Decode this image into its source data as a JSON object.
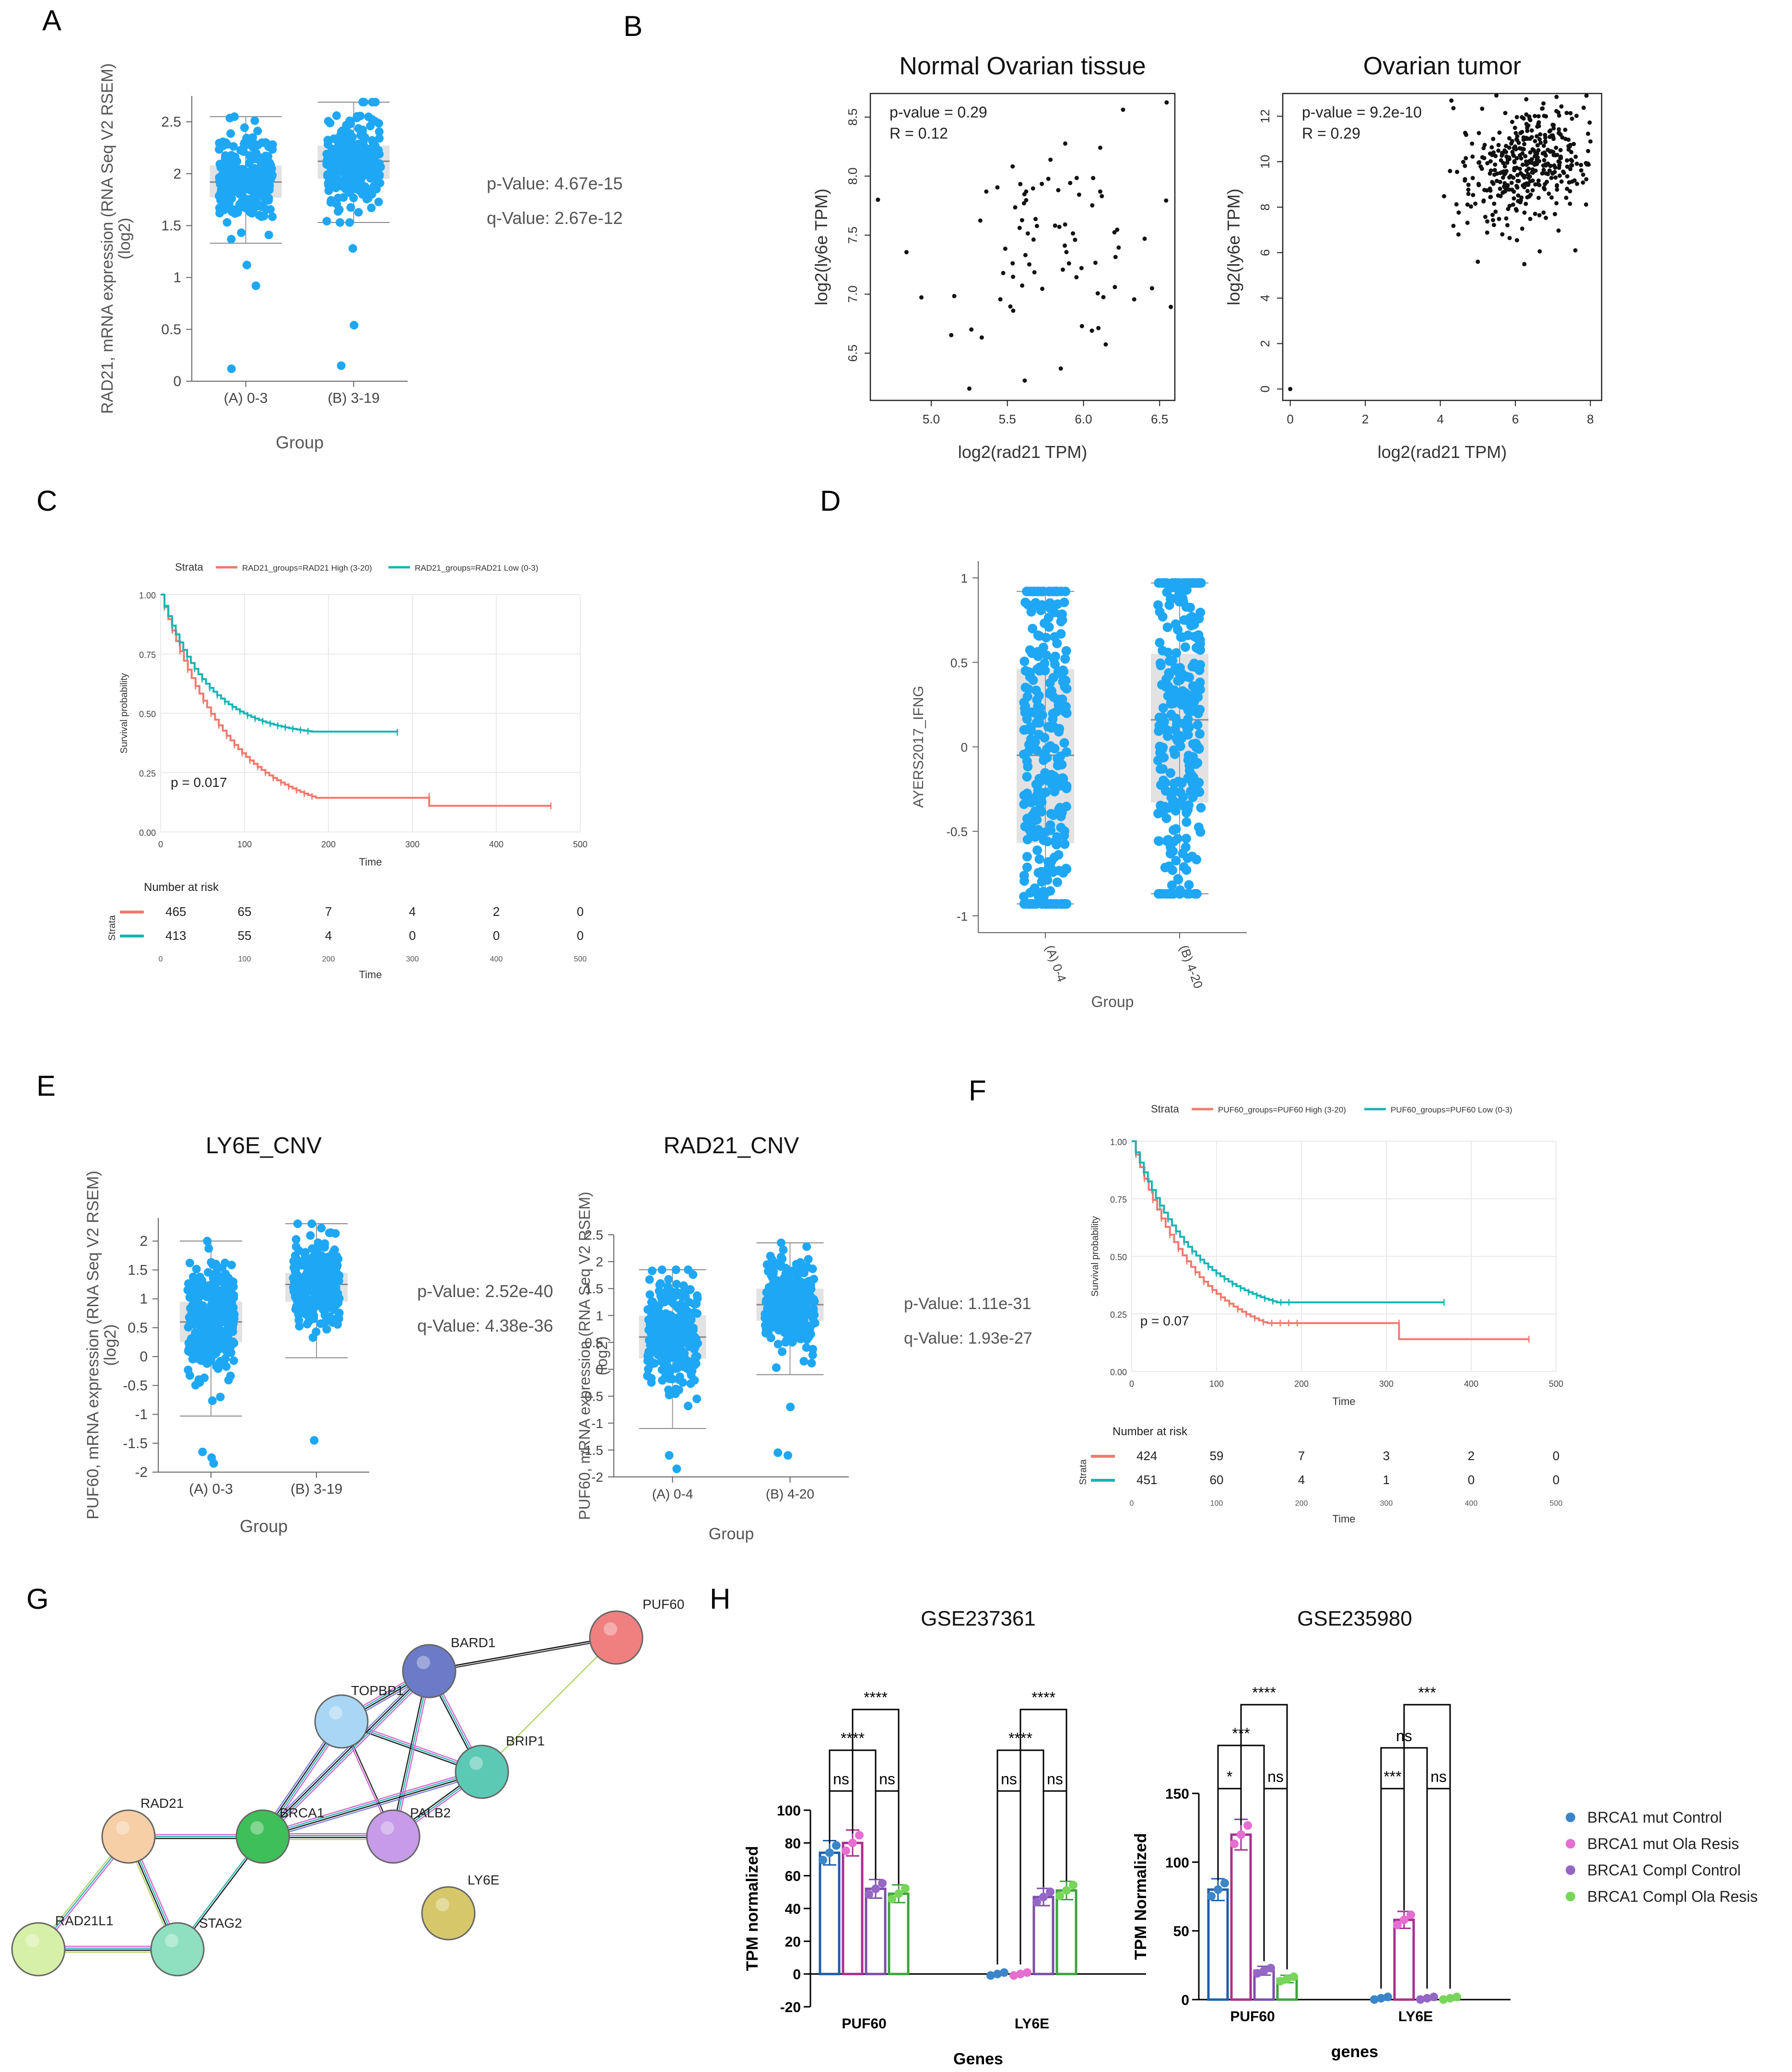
{
  "panel_labels": [
    "A",
    "B",
    "C",
    "D",
    "E",
    "F",
    "G",
    "H"
  ],
  "colors": {
    "blue": "#1ea7f5",
    "salmon": "#f07a6e",
    "teal": "#18b4b4",
    "box": "#d6d6d6",
    "bar1": "#1f5ea8",
    "bar2": "#a8308f",
    "bar3": "#7b4fa8",
    "bar4": "#3fa23f",
    "dot1": "#3a86c8",
    "dot2": "#e66ed0",
    "dot3": "#9467c5",
    "dot4": "#77d65a"
  },
  "chart_data": [
    {
      "id": "A",
      "type": "scatter",
      "title": "",
      "xlabel": "Group",
      "ylabel": "RAD21, mRNA expression (RNA Seq V2 RSEM)",
      "ylabel2": "(log2)",
      "categories": [
        "(A) 0-3",
        "(B) 3-19"
      ],
      "ylim": [
        0,
        2.75
      ],
      "yticks": [
        "0",
        "0.5",
        "1",
        "1.5",
        "2",
        "2.5"
      ],
      "box": [
        {
          "q1": 1.77,
          "med": 1.92,
          "q3": 2.08,
          "wlo": 1.33,
          "whi": 2.55
        },
        {
          "q1": 1.95,
          "med": 2.12,
          "q3": 2.27,
          "wlo": 1.53,
          "whi": 2.69
        }
      ],
      "annotations": [
        "p-Value: 4.67e-15",
        "q-Value: 2.67e-12"
      ]
    },
    {
      "id": "B1",
      "type": "scatter",
      "title": "Normal Ovarian tissue",
      "xlabel": "log2(rad21 TPM)",
      "ylabel": "log2(ly6e TPM)",
      "xticks": [
        "5.0",
        "5.5",
        "6.0",
        "6.5"
      ],
      "yticks": [
        "6.5",
        "7.0",
        "7.5",
        "8.0",
        "8.5"
      ],
      "xlim": [
        4.6,
        6.6
      ],
      "ylim": [
        6.1,
        8.7
      ],
      "annotations": [
        "p-value = 0.29",
        "R = 0.12"
      ]
    },
    {
      "id": "B2",
      "type": "scatter",
      "title": "Ovarian tumor",
      "xlabel": "log2(rad21 TPM)",
      "ylabel": "log2(ly6e TPM)",
      "xticks": [
        "0",
        "2",
        "4",
        "6",
        "8"
      ],
      "yticks": [
        "0",
        "2",
        "4",
        "6",
        "8",
        "10",
        "12"
      ],
      "xlim": [
        -0.2,
        8.3
      ],
      "ylim": [
        -0.5,
        13
      ],
      "annotations": [
        "p-value = 9.2e-10",
        "R = 0.29"
      ]
    },
    {
      "id": "C",
      "type": "line",
      "title": "",
      "xlabel": "Time",
      "ylabel": "Survival probability",
      "legend_title": "Strata",
      "series": [
        {
          "name": "RAD21_groups=RAD21 High (3-20)"
        },
        {
          "name": "RAD21_groups=RAD21 Low (0-3)"
        }
      ],
      "xticks": [
        "0",
        "100",
        "200",
        "300",
        "400",
        "500"
      ],
      "yticks": [
        "0.00",
        "0.25",
        "0.50",
        "0.75",
        "1.00"
      ],
      "pvalue": "p = 0.017",
      "risk_title": "Number at risk",
      "risk_strata_label": "Strata",
      "risk": [
        [
          "465",
          "65",
          "7",
          "4",
          "2",
          "0"
        ],
        [
          "413",
          "55",
          "4",
          "0",
          "0",
          "0"
        ]
      ]
    },
    {
      "id": "D",
      "type": "scatter",
      "title": "",
      "xlabel": "Group",
      "ylabel": "AYERS2017_IFNG",
      "categories": [
        "(A) 0-4",
        "(B) 4-20"
      ],
      "ylim": [
        -1.1,
        1.1
      ],
      "yticks": [
        "-1",
        "-0.5",
        "0",
        "0.5",
        "1"
      ],
      "box": [
        {
          "q1": -0.57,
          "med": -0.05,
          "q3": 0.46,
          "wlo": -0.93,
          "whi": 0.92
        },
        {
          "q1": -0.33,
          "med": 0.16,
          "q3": 0.55,
          "wlo": -0.87,
          "whi": 0.97
        }
      ]
    },
    {
      "id": "E1",
      "type": "scatter",
      "title": "LY6E_CNV",
      "xlabel": "Group",
      "ylabel": "PUF60, mRNA expression (RNA Seq V2 RSEM)",
      "ylabel2": "(log2)",
      "categories": [
        "(A) 0-3",
        "(B) 3-19"
      ],
      "ylim": [
        -2,
        2.4
      ],
      "yticks": [
        "-2",
        "-1.5",
        "-1",
        "-0.5",
        "0",
        "0.5",
        "1",
        "1.5",
        "2"
      ],
      "box": [
        {
          "q1": 0.25,
          "med": 0.6,
          "q3": 0.95,
          "wlo": -1.03,
          "whi": 2.0
        },
        {
          "q1": 0.95,
          "med": 1.25,
          "q3": 1.45,
          "wlo": -0.02,
          "whi": 2.3
        }
      ],
      "annotations": [
        "p-Value: 2.52e-40",
        "q-Value: 4.38e-36"
      ]
    },
    {
      "id": "E2",
      "type": "scatter",
      "title": "RAD21_CNV",
      "xlabel": "Group",
      "ylabel": "PUF60, mRNA expression (RNA Seq V2 RSEM)",
      "ylabel2": "(log2)",
      "categories": [
        "(A) 0-4",
        "(B) 4-20"
      ],
      "ylim": [
        -2,
        2.5
      ],
      "yticks": [
        "-2",
        "-1.5",
        "-1",
        "-0.5",
        "0",
        "0.5",
        "1",
        "1.5",
        "2",
        "2.5"
      ],
      "box": [
        {
          "q1": 0.2,
          "med": 0.6,
          "q3": 1.0,
          "wlo": -1.1,
          "whi": 1.85
        },
        {
          "q1": 0.9,
          "med": 1.2,
          "q3": 1.5,
          "wlo": -0.1,
          "whi": 2.35
        }
      ],
      "annotations": [
        "p-Value: 1.11e-31",
        "q-Value: 1.93e-27"
      ]
    },
    {
      "id": "F",
      "type": "line",
      "title": "",
      "xlabel": "Time",
      "ylabel": "Survival probability",
      "legend_title": "Strata",
      "series": [
        {
          "name": "PUF60_groups=PUF60 High (3-20)"
        },
        {
          "name": "PUF60_groups=PUF60 Low (0-3)"
        }
      ],
      "xticks": [
        "0",
        "100",
        "200",
        "300",
        "400",
        "500"
      ],
      "yticks": [
        "0.00",
        "0.25",
        "0.50",
        "0.75",
        "1.00"
      ],
      "pvalue": "p = 0.07",
      "risk_title": "Number at risk",
      "risk_strata_label": "Strata",
      "risk": [
        [
          "424",
          "59",
          "7",
          "3",
          "2",
          "0"
        ],
        [
          "451",
          "60",
          "4",
          "1",
          "0",
          "0"
        ]
      ]
    },
    {
      "id": "G",
      "type": "network",
      "nodes": [
        "PUF60",
        "BARD1",
        "TOPBP1",
        "BRIP1",
        "RAD21",
        "BRCA1",
        "PALB2",
        "LY6E",
        "RAD21L1",
        "STAG2"
      ]
    },
    {
      "id": "H1",
      "type": "bar",
      "title": "GSE237361",
      "xlabel": "Genes",
      "ylabel": "TPM normalized",
      "categories": [
        "PUF60",
        "LY6E"
      ],
      "ylim": [
        -20,
        100
      ],
      "yticks": [
        "-20",
        "0",
        "20",
        "40",
        "60",
        "80",
        "100"
      ],
      "series": [
        {
          "name": "BRCA1 mut Control",
          "values": [
            74,
            0
          ]
        },
        {
          "name": "BRCA1 mut Ola Resis",
          "values": [
            80,
            0
          ]
        },
        {
          "name": "BRCA1 Compl Control",
          "values": [
            52,
            47
          ]
        },
        {
          "name": "BRCA1 Compl Ola Resis",
          "values": [
            49,
            51
          ]
        }
      ],
      "sig": [
        "ns",
        "ns",
        "****",
        "****",
        "ns",
        "ns",
        "****",
        "****"
      ]
    },
    {
      "id": "H2",
      "type": "bar",
      "title": "GSE235980",
      "xlabel": "genes",
      "ylabel": "TPM Normalized",
      "categories": [
        "PUF60",
        "LY6E"
      ],
      "ylim": [
        0,
        150
      ],
      "yticks": [
        "0",
        "50",
        "100",
        "150"
      ],
      "series": [
        {
          "name": "BRCA1 mut Control",
          "values": [
            80,
            1
          ]
        },
        {
          "name": "BRCA1 mut Ola Resis",
          "values": [
            120,
            58
          ]
        },
        {
          "name": "BRCA1 Compl Control",
          "values": [
            21,
            1
          ]
        },
        {
          "name": "BRCA1 Compl Ola Resis",
          "values": [
            15,
            1
          ]
        }
      ],
      "sig": [
        "*",
        "ns",
        "***",
        "****",
        "***",
        "ns",
        "ns",
        "***"
      ]
    }
  ],
  "legend_h": [
    "BRCA1 mut Control",
    "BRCA1 mut Ola Resis",
    "BRCA1 Compl Control",
    "BRCA1 Compl Ola Resis"
  ]
}
